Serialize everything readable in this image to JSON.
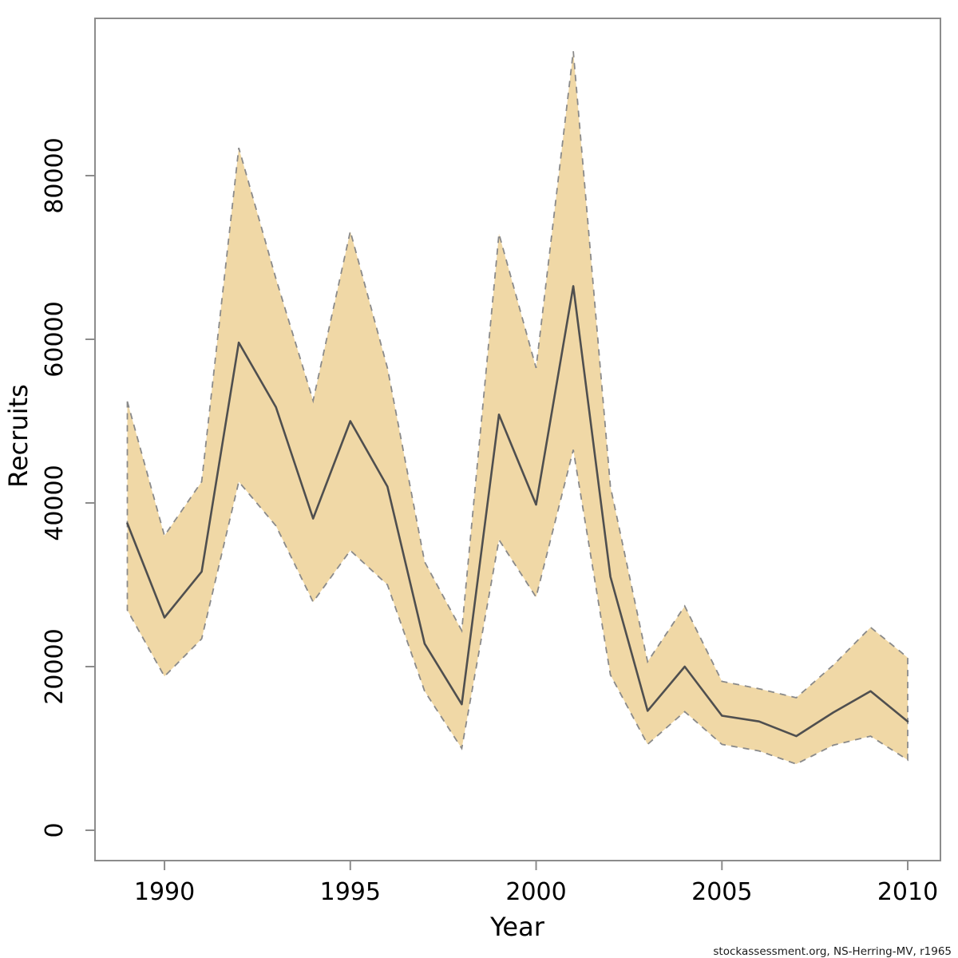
{
  "chart_data": {
    "type": "line",
    "title": "",
    "xlabel": "Year",
    "ylabel": "Recruits",
    "x": [
      1989,
      1990,
      1991,
      1992,
      1993,
      1994,
      1995,
      1996,
      1997,
      1998,
      1999,
      2000,
      2001,
      2002,
      2003,
      2004,
      2005,
      2006,
      2007,
      2008,
      2009,
      2010
    ],
    "series": [
      {
        "name": "median",
        "values": [
          37500,
          26000,
          31600,
          59600,
          51700,
          38100,
          50000,
          42000,
          22800,
          15400,
          50800,
          39800,
          66500,
          31000,
          14600,
          20000,
          14000,
          13300,
          11500,
          14400,
          17000,
          13300
        ]
      },
      {
        "name": "ci-lower",
        "values": [
          26900,
          18800,
          23400,
          42600,
          37200,
          27900,
          34200,
          30000,
          17000,
          10000,
          35500,
          28500,
          46500,
          19000,
          10500,
          14500,
          10500,
          9700,
          8100,
          10400,
          11500,
          8600
        ]
      },
      {
        "name": "ci-upper",
        "values": [
          52400,
          36000,
          42600,
          83400,
          67400,
          52500,
          73200,
          56500,
          32800,
          24400,
          72900,
          56500,
          95200,
          42000,
          20600,
          27400,
          18200,
          17300,
          16200,
          20200,
          24800,
          21100
        ]
      }
    ],
    "x_ticks": [
      1990,
      1995,
      2000,
      2005,
      2010
    ],
    "y_ticks": [
      0,
      20000,
      40000,
      60000,
      80000
    ],
    "xlim": [
      1988.13,
      2010.88
    ],
    "ylim": [
      -3707,
      99220
    ],
    "grid": false,
    "legend": "none",
    "band_fill_color": "#f0d8a6",
    "band_edge_color": "#8a8a8a",
    "median_line_color": "#4f4f4f",
    "axis_color": "#8c8c8c"
  },
  "footer": {
    "attribution": "stockassessment.org, NS-Herring-MV, r1965"
  }
}
